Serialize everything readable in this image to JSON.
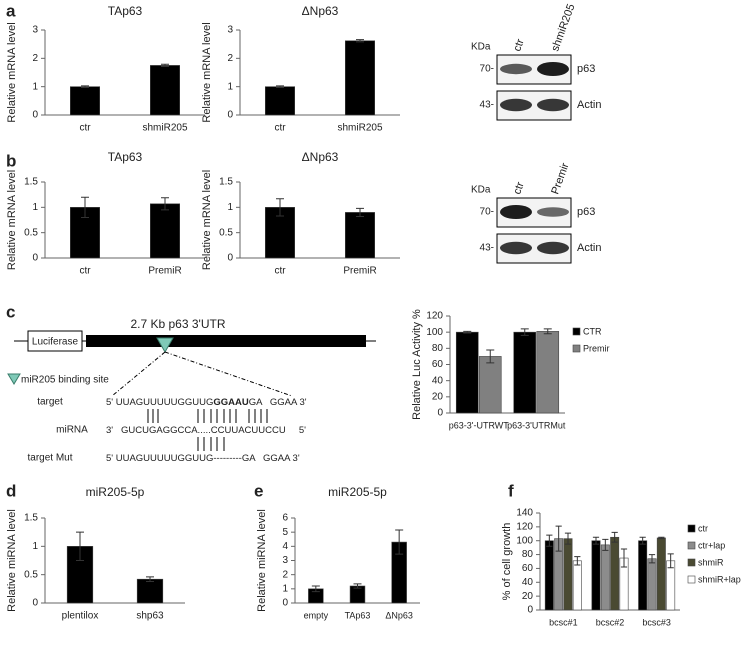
{
  "panels": [
    "a",
    "b",
    "c",
    "d",
    "e",
    "f"
  ],
  "chart_data": [
    {
      "type": "bar",
      "title": "TAp63",
      "ylabel": "Relative mRNA level",
      "categories": [
        "ctr",
        "shmiR205"
      ],
      "values": [
        1,
        1.75
      ],
      "errors": [
        0.03,
        0.04
      ],
      "color": "#000000",
      "ylim": [
        0,
        3
      ],
      "yticks": [
        0,
        1,
        2,
        3
      ]
    },
    {
      "type": "bar",
      "title": "ΔNp63",
      "ylabel": "Relative mRNA level",
      "categories": [
        "ctr",
        "shmiR205"
      ],
      "values": [
        1,
        2.62
      ],
      "errors": [
        0.03,
        0.04
      ],
      "color": "#000000",
      "ylim": [
        0,
        3
      ],
      "yticks": [
        0,
        1,
        2,
        3
      ]
    },
    {
      "type": "bar",
      "title": "TAp63",
      "ylabel": "Relative mRNA level",
      "categories": [
        "ctr",
        "PremiR"
      ],
      "values": [
        1,
        1.07
      ],
      "errors": [
        0.2,
        0.12
      ],
      "color": "#000000",
      "ylim": [
        0,
        1.5
      ],
      "yticks": [
        0,
        0.5,
        1,
        1.5
      ]
    },
    {
      "type": "bar",
      "title": "ΔNp63",
      "ylabel": "Relative mRNA level",
      "categories": [
        "ctr",
        "PremiR"
      ],
      "values": [
        1,
        0.9
      ],
      "errors": [
        0.17,
        0.08
      ],
      "color": "#000000",
      "ylim": [
        0,
        1.5
      ],
      "yticks": [
        0,
        0.5,
        1,
        1.5
      ]
    },
    {
      "type": "bar",
      "ylabel": "Relative Luc Activity %",
      "categories": [
        "p63-3'-UTRWT",
        "p63-3'UTRMut"
      ],
      "series": [
        {
          "name": "CTR",
          "color": "#000000",
          "values": [
            100,
            100
          ],
          "errors": [
            1,
            4
          ]
        },
        {
          "name": "Premir",
          "color": "#808080",
          "values": [
            70,
            101
          ],
          "errors": [
            8,
            3
          ]
        }
      ],
      "ylim": [
        0,
        120
      ],
      "yticks": [
        0,
        20,
        40,
        60,
        80,
        100,
        120
      ],
      "legend": "right"
    },
    {
      "type": "bar",
      "title": "miR205-5p",
      "ylabel": "Relative miRNA level",
      "categories": [
        "plentilox",
        "shp63"
      ],
      "values": [
        1,
        0.42
      ],
      "errors": [
        0.25,
        0.04
      ],
      "color": "#000000",
      "ylim": [
        0,
        1.5
      ],
      "yticks": [
        0,
        0.5,
        1,
        1.5
      ]
    },
    {
      "type": "bar",
      "title": "miR205-5p",
      "ylabel": "Relative miRNA level",
      "categories": [
        "empty",
        "TAp63",
        "ΔNp63"
      ],
      "values": [
        1,
        1.2,
        4.3
      ],
      "errors": [
        0.2,
        0.15,
        0.85
      ],
      "color": "#000000",
      "ylim": [
        0,
        6
      ],
      "yticks": [
        0,
        1,
        2,
        3,
        4,
        5,
        6
      ]
    },
    {
      "type": "bar",
      "ylabel": "% of cell growth",
      "categories": [
        "bcsc#1",
        "bcsc#2",
        "bcsc#3"
      ],
      "series": [
        {
          "name": "ctr",
          "color": "#000000",
          "values": [
            100,
            100,
            100
          ],
          "errors": [
            8,
            5,
            5
          ]
        },
        {
          "name": "ctr+lap",
          "color": "#8c8c8c",
          "values": [
            103,
            94,
            74
          ],
          "errors": [
            18,
            8,
            6
          ]
        },
        {
          "name": "shmiR",
          "color": "#4a4a32",
          "values": [
            103,
            105,
            104
          ],
          "errors": [
            8,
            7,
            1
          ]
        },
        {
          "name": "shmiR+lap",
          "color": "#ffffff",
          "values": [
            71,
            75,
            71
          ],
          "errors": [
            6,
            13,
            10
          ]
        }
      ],
      "ylim": [
        0,
        140
      ],
      "yticks": [
        0,
        20,
        40,
        60,
        80,
        100,
        120,
        140
      ],
      "legend": "right"
    }
  ],
  "blots": [
    {
      "unit": "KDa",
      "lanes": [
        "ctr",
        "shmiR205"
      ],
      "markers": [
        "70-",
        "43-"
      ],
      "proteins": [
        "p63",
        "Actin"
      ]
    },
    {
      "unit": "KDa",
      "lanes": [
        "ctr",
        "Premir"
      ],
      "markers": [
        "70-",
        "43-"
      ],
      "proteins": [
        "p63",
        "Actin"
      ]
    }
  ],
  "diagram": {
    "reporter": "Luciferase",
    "utr": "2.7 Kb p63 3'UTR",
    "site": "miR205 binding site",
    "rows": [
      {
        "label": "target",
        "parts": [
          "5' UUAGUUUUUGGUUG",
          "GGAAU",
          "GA   GGAA 3'"
        ]
      },
      {
        "label": "miRNA",
        "parts": [
          "3'   GUCUGAGGCCA.....CCUUACUUCCU     5'"
        ]
      },
      {
        "label": "target Mut",
        "parts": [
          "5' UUAGUUUUUGGUUG---------GA   GGAA 3'"
        ]
      }
    ]
  }
}
